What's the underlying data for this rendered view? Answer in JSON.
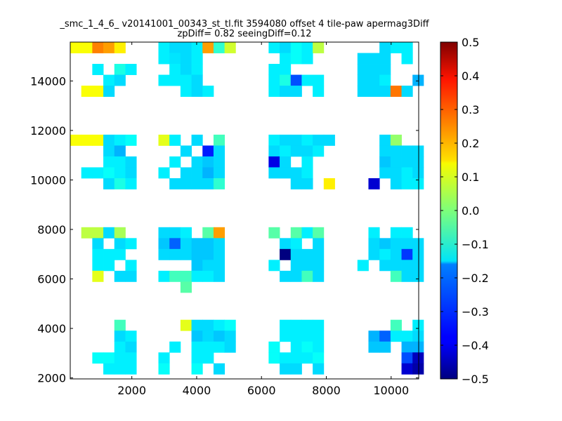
{
  "chart_data": {
    "type": "heatmap",
    "title": "_smc_1_4_6_ v20141001_00343_st_tl.fit 3594080 offset 4 tile-paw apermag3Diff",
    "subtitle": "zpDiff= 0.82 seeingDiff=0.12",
    "xlabel": "",
    "ylabel": "",
    "xlim": [
      100,
      10850
    ],
    "ylim": [
      1960,
      15570
    ],
    "x_ticks": [
      2000,
      4000,
      6000,
      8000,
      10000
    ],
    "y_ticks": [
      2000,
      4000,
      6000,
      8000,
      10000,
      12000,
      14000
    ],
    "x_tick_labels": [
      "2000",
      "4000",
      "6000",
      "8000",
      "10000"
    ],
    "y_tick_labels": [
      "2000",
      "4000",
      "6000",
      "8000",
      "10000",
      "12000",
      "14000"
    ],
    "colorbar": {
      "min": -0.5,
      "max": 0.5,
      "colormap": "jet",
      "ticks": [
        0.5,
        0.4,
        0.3,
        0.2,
        0.1,
        0.0,
        -0.1,
        -0.2,
        -0.3,
        -0.4,
        -0.5
      ],
      "tick_labels": [
        "0.5",
        "0.4",
        "0.3",
        "0.2",
        "0.1",
        "0.0",
        "−0.1",
        "−0.2",
        "−0.3",
        "−0.4",
        "−0.5"
      ]
    },
    "grid": false,
    "cell_size": [
      340,
      440
    ],
    "cells": [
      [
        100,
        15130,
        0.12
      ],
      [
        440,
        15130,
        0.12
      ],
      [
        780,
        15130,
        0.25
      ],
      [
        1120,
        15130,
        0.22
      ],
      [
        1460,
        15130,
        0.14
      ],
      [
        2820,
        15130,
        -0.14
      ],
      [
        3160,
        15130,
        -0.16
      ],
      [
        3500,
        15130,
        -0.16
      ],
      [
        3840,
        15130,
        -0.14
      ],
      [
        4180,
        15130,
        0.22
      ],
      [
        4520,
        15130,
        -0.08
      ],
      [
        4860,
        15130,
        0.08
      ],
      [
        6220,
        15130,
        -0.14
      ],
      [
        6560,
        15130,
        -0.16
      ],
      [
        6900,
        15130,
        -0.12
      ],
      [
        7240,
        15130,
        -0.14
      ],
      [
        7580,
        15130,
        0.06
      ],
      [
        9640,
        15130,
        -0.16
      ],
      [
        9980,
        15130,
        -0.14
      ],
      [
        10320,
        15130,
        -0.14
      ],
      [
        2820,
        14690,
        -0.14
      ],
      [
        3160,
        14690,
        -0.15
      ],
      [
        3500,
        14690,
        -0.16
      ],
      [
        3840,
        14690,
        -0.14
      ],
      [
        6560,
        14690,
        -0.14
      ],
      [
        6900,
        14690,
        -0.12
      ],
      [
        7240,
        14690,
        -0.14
      ],
      [
        8960,
        14690,
        -0.16
      ],
      [
        9300,
        14690,
        -0.16
      ],
      [
        9640,
        14690,
        -0.16
      ],
      [
        10320,
        14690,
        -0.14
      ],
      [
        780,
        14250,
        -0.14
      ],
      [
        1460,
        14250,
        -0.1
      ],
      [
        1800,
        14250,
        -0.14
      ],
      [
        3160,
        14250,
        -0.14
      ],
      [
        3500,
        14250,
        -0.16
      ],
      [
        3840,
        14250,
        -0.14
      ],
      [
        6220,
        14250,
        -0.14
      ],
      [
        6560,
        14250,
        -0.14
      ],
      [
        8960,
        14250,
        -0.16
      ],
      [
        9300,
        14250,
        -0.16
      ],
      [
        9640,
        14250,
        -0.16
      ],
      [
        1120,
        13810,
        -0.14
      ],
      [
        1460,
        13810,
        -0.16
      ],
      [
        2820,
        13810,
        -0.14
      ],
      [
        3160,
        13810,
        -0.14
      ],
      [
        3500,
        13810,
        -0.14
      ],
      [
        3840,
        13810,
        -0.16
      ],
      [
        6220,
        13810,
        -0.14
      ],
      [
        6560,
        13810,
        -0.1
      ],
      [
        6900,
        13810,
        -0.3
      ],
      [
        7240,
        13810,
        -0.14
      ],
      [
        7580,
        13810,
        -0.14
      ],
      [
        8960,
        13810,
        -0.16
      ],
      [
        9300,
        13810,
        -0.16
      ],
      [
        9640,
        13810,
        -0.14
      ],
      [
        10660,
        13810,
        -0.2
      ],
      [
        440,
        13370,
        0.12
      ],
      [
        780,
        13370,
        0.12
      ],
      [
        1120,
        13370,
        -0.16
      ],
      [
        3500,
        13370,
        -0.14
      ],
      [
        3840,
        13370,
        -0.16
      ],
      [
        4180,
        13370,
        -0.14
      ],
      [
        6220,
        13370,
        -0.14
      ],
      [
        6560,
        13370,
        -0.16
      ],
      [
        6900,
        13370,
        -0.16
      ],
      [
        7580,
        13370,
        -0.14
      ],
      [
        8960,
        13370,
        -0.16
      ],
      [
        9300,
        13370,
        -0.16
      ],
      [
        9640,
        13370,
        -0.16
      ],
      [
        9980,
        13370,
        0.26
      ],
      [
        10320,
        13370,
        -0.16
      ],
      [
        100,
        11390,
        0.12
      ],
      [
        440,
        11390,
        0.12
      ],
      [
        780,
        11390,
        0.12
      ],
      [
        1120,
        11390,
        -0.16
      ],
      [
        1460,
        11390,
        -0.14
      ],
      [
        1800,
        11390,
        -0.12
      ],
      [
        2820,
        11390,
        0.1
      ],
      [
        3160,
        11390,
        -0.14
      ],
      [
        3840,
        11390,
        -0.16
      ],
      [
        4520,
        11390,
        -0.06
      ],
      [
        6220,
        11390,
        -0.14
      ],
      [
        6560,
        11390,
        -0.16
      ],
      [
        6900,
        11390,
        -0.16
      ],
      [
        7240,
        11390,
        -0.14
      ],
      [
        7580,
        11390,
        -0.16
      ],
      [
        7920,
        11390,
        -0.16
      ],
      [
        9640,
        11390,
        -0.16
      ],
      [
        9980,
        11390,
        0.02
      ],
      [
        1120,
        10950,
        -0.16
      ],
      [
        1460,
        10950,
        -0.2
      ],
      [
        3500,
        10950,
        -0.16
      ],
      [
        4180,
        10950,
        -0.35
      ],
      [
        4520,
        10950,
        -0.16
      ],
      [
        6220,
        10950,
        -0.16
      ],
      [
        6560,
        10950,
        -0.14
      ],
      [
        6900,
        10950,
        -0.16
      ],
      [
        7240,
        10950,
        -0.16
      ],
      [
        7580,
        10950,
        -0.14
      ],
      [
        9640,
        10950,
        -0.16
      ],
      [
        9980,
        10950,
        -0.16
      ],
      [
        10320,
        10950,
        -0.16
      ],
      [
        10660,
        10950,
        -0.16
      ],
      [
        1120,
        10510,
        -0.14
      ],
      [
        1460,
        10510,
        -0.14
      ],
      [
        1800,
        10510,
        -0.16
      ],
      [
        3160,
        10510,
        -0.14
      ],
      [
        3840,
        10510,
        -0.16
      ],
      [
        4180,
        10510,
        -0.18
      ],
      [
        4520,
        10510,
        -0.16
      ],
      [
        6220,
        10510,
        -0.4
      ],
      [
        6560,
        10510,
        -0.16
      ],
      [
        7240,
        10510,
        -0.14
      ],
      [
        9640,
        10510,
        -0.18
      ],
      [
        9980,
        10510,
        -0.16
      ],
      [
        10320,
        10510,
        -0.16
      ],
      [
        10660,
        10510,
        -0.16
      ],
      [
        440,
        10070,
        -0.14
      ],
      [
        780,
        10070,
        -0.14
      ],
      [
        1120,
        10070,
        -0.12
      ],
      [
        1460,
        10070,
        -0.14
      ],
      [
        1800,
        10070,
        -0.16
      ],
      [
        2820,
        10070,
        -0.14
      ],
      [
        3500,
        10070,
        -0.16
      ],
      [
        3840,
        10070,
        -0.16
      ],
      [
        4180,
        10070,
        -0.2
      ],
      [
        4520,
        10070,
        -0.16
      ],
      [
        6220,
        10070,
        -0.16
      ],
      [
        6560,
        10070,
        -0.16
      ],
      [
        6900,
        10070,
        -0.16
      ],
      [
        7240,
        10070,
        -0.14
      ],
      [
        9640,
        10070,
        -0.16
      ],
      [
        9980,
        10070,
        -0.16
      ],
      [
        10320,
        10070,
        -0.14
      ],
      [
        10660,
        10070,
        -0.16
      ],
      [
        1120,
        9630,
        -0.16
      ],
      [
        1460,
        9630,
        -0.1
      ],
      [
        1800,
        9630,
        -0.14
      ],
      [
        3160,
        9630,
        -0.16
      ],
      [
        3500,
        9630,
        -0.16
      ],
      [
        3840,
        9630,
        -0.16
      ],
      [
        4180,
        9630,
        -0.16
      ],
      [
        4520,
        9630,
        -0.08
      ],
      [
        6900,
        9630,
        -0.16
      ],
      [
        7240,
        9630,
        -0.16
      ],
      [
        7920,
        9630,
        0.14
      ],
      [
        9300,
        9630,
        -0.42
      ],
      [
        9980,
        9630,
        -0.16
      ],
      [
        10320,
        9630,
        -0.14
      ],
      [
        10660,
        9630,
        -0.14
      ],
      [
        440,
        7650,
        0.06
      ],
      [
        780,
        7650,
        0.06
      ],
      [
        1120,
        7650,
        -0.16
      ],
      [
        1460,
        7650,
        0.04
      ],
      [
        2820,
        7650,
        -0.16
      ],
      [
        3160,
        7650,
        -0.16
      ],
      [
        3500,
        7650,
        -0.14
      ],
      [
        4180,
        7650,
        -0.04
      ],
      [
        4520,
        7650,
        0.22
      ],
      [
        6220,
        7650,
        -0.04
      ],
      [
        6900,
        7650,
        -0.04
      ],
      [
        7240,
        7650,
        -0.14
      ],
      [
        7580,
        7650,
        -0.04
      ],
      [
        9300,
        7650,
        -0.14
      ],
      [
        9980,
        7650,
        -0.14
      ],
      [
        10320,
        7650,
        -0.14
      ],
      [
        780,
        7210,
        -0.16
      ],
      [
        1460,
        7210,
        -0.16
      ],
      [
        1800,
        7210,
        -0.14
      ],
      [
        2820,
        7210,
        -0.18
      ],
      [
        3160,
        7210,
        -0.28
      ],
      [
        3500,
        7210,
        -0.16
      ],
      [
        3840,
        7210,
        -0.18
      ],
      [
        4180,
        7210,
        -0.18
      ],
      [
        4520,
        7210,
        -0.16
      ],
      [
        6560,
        7210,
        -0.16
      ],
      [
        6900,
        7210,
        -0.14
      ],
      [
        7580,
        7210,
        -0.16
      ],
      [
        9300,
        7210,
        -0.16
      ],
      [
        9640,
        7210,
        -0.18
      ],
      [
        9980,
        7210,
        -0.16
      ],
      [
        10320,
        7210,
        -0.16
      ],
      [
        10660,
        7210,
        -0.16
      ],
      [
        780,
        6770,
        -0.14
      ],
      [
        1120,
        6770,
        -0.14
      ],
      [
        1460,
        6770,
        -0.14
      ],
      [
        2820,
        6770,
        -0.16
      ],
      [
        3160,
        6770,
        -0.16
      ],
      [
        3500,
        6770,
        -0.16
      ],
      [
        3840,
        6770,
        -0.18
      ],
      [
        4180,
        6770,
        -0.18
      ],
      [
        4520,
        6770,
        -0.16
      ],
      [
        6560,
        6770,
        -0.5
      ],
      [
        6900,
        6770,
        -0.16
      ],
      [
        7240,
        6770,
        -0.16
      ],
      [
        7580,
        6770,
        -0.16
      ],
      [
        9300,
        6770,
        -0.16
      ],
      [
        9640,
        6770,
        -0.14
      ],
      [
        9980,
        6770,
        -0.16
      ],
      [
        10320,
        6770,
        -0.32
      ],
      [
        10660,
        6770,
        -0.16
      ],
      [
        780,
        6330,
        -0.14
      ],
      [
        1120,
        6330,
        -0.14
      ],
      [
        1800,
        6330,
        -0.14
      ],
      [
        3840,
        6330,
        -0.18
      ],
      [
        4180,
        6330,
        -0.16
      ],
      [
        4520,
        6330,
        -0.16
      ],
      [
        6220,
        6330,
        -0.14
      ],
      [
        6900,
        6330,
        -0.16
      ],
      [
        7240,
        6330,
        -0.16
      ],
      [
        7580,
        6330,
        -0.16
      ],
      [
        8960,
        6330,
        -0.14
      ],
      [
        9640,
        6330,
        -0.16
      ],
      [
        9980,
        6330,
        -0.16
      ],
      [
        10320,
        6330,
        -0.16
      ],
      [
        10660,
        6330,
        -0.16
      ],
      [
        780,
        5890,
        0.1
      ],
      [
        1460,
        5890,
        -0.16
      ],
      [
        1800,
        5890,
        -0.16
      ],
      [
        2820,
        5890,
        -0.14
      ],
      [
        3160,
        5890,
        -0.06
      ],
      [
        3500,
        5890,
        -0.06
      ],
      [
        3840,
        5890,
        -0.14
      ],
      [
        4180,
        5890,
        -0.14
      ],
      [
        4520,
        5890,
        -0.16
      ],
      [
        6560,
        5890,
        -0.16
      ],
      [
        6900,
        5890,
        -0.16
      ],
      [
        7240,
        5890,
        -0.06
      ],
      [
        7580,
        5890,
        -0.16
      ],
      [
        9980,
        5890,
        -0.06
      ],
      [
        10320,
        5890,
        -0.16
      ],
      [
        10660,
        5890,
        -0.16
      ],
      [
        3500,
        5450,
        -0.04
      ],
      [
        1460,
        3910,
        -0.06
      ],
      [
        3500,
        3910,
        0.1
      ],
      [
        3840,
        3910,
        -0.16
      ],
      [
        4180,
        3910,
        -0.16
      ],
      [
        4520,
        3910,
        -0.14
      ],
      [
        4860,
        3910,
        -0.12
      ],
      [
        6560,
        3910,
        -0.14
      ],
      [
        6900,
        3910,
        -0.14
      ],
      [
        7240,
        3910,
        -0.14
      ],
      [
        7580,
        3910,
        -0.14
      ],
      [
        9980,
        3910,
        -0.06
      ],
      [
        10660,
        3910,
        -0.14
      ],
      [
        1460,
        3470,
        -0.16
      ],
      [
        1800,
        3470,
        -0.14
      ],
      [
        3840,
        3470,
        -0.18
      ],
      [
        4180,
        3470,
        -0.16
      ],
      [
        4520,
        3470,
        -0.18
      ],
      [
        4860,
        3470,
        -0.16
      ],
      [
        6560,
        3470,
        -0.14
      ],
      [
        6900,
        3470,
        -0.14
      ],
      [
        7240,
        3470,
        -0.14
      ],
      [
        7580,
        3470,
        -0.14
      ],
      [
        9300,
        3470,
        -0.2
      ],
      [
        9640,
        3470,
        -0.28
      ],
      [
        9980,
        3470,
        -0.14
      ],
      [
        10320,
        3470,
        -0.14
      ],
      [
        10660,
        3470,
        -0.16
      ],
      [
        1460,
        3030,
        -0.14
      ],
      [
        1800,
        3030,
        -0.16
      ],
      [
        3160,
        3030,
        -0.14
      ],
      [
        3840,
        3030,
        -0.14
      ],
      [
        4180,
        3030,
        -0.14
      ],
      [
        4520,
        3030,
        -0.14
      ],
      [
        4860,
        3030,
        -0.16
      ],
      [
        6220,
        3030,
        -0.12
      ],
      [
        6900,
        3030,
        -0.14
      ],
      [
        7240,
        3030,
        -0.12
      ],
      [
        7580,
        3030,
        -0.14
      ],
      [
        9300,
        3030,
        -0.18
      ],
      [
        9640,
        3030,
        -0.18
      ],
      [
        10320,
        3030,
        -0.2
      ],
      [
        10660,
        3030,
        -0.2
      ],
      [
        780,
        2590,
        -0.12
      ],
      [
        1120,
        2590,
        -0.12
      ],
      [
        1460,
        2590,
        -0.14
      ],
      [
        1800,
        2590,
        -0.14
      ],
      [
        2820,
        2590,
        -0.14
      ],
      [
        3840,
        2590,
        -0.14
      ],
      [
        4180,
        2590,
        -0.14
      ],
      [
        6220,
        2590,
        -0.12
      ],
      [
        6560,
        2590,
        -0.14
      ],
      [
        6900,
        2590,
        -0.14
      ],
      [
        7240,
        2590,
        -0.14
      ],
      [
        7580,
        2590,
        -0.12
      ],
      [
        10320,
        2590,
        -0.3
      ],
      [
        10660,
        2590,
        -0.44
      ],
      [
        1120,
        2150,
        -0.14
      ],
      [
        1460,
        2150,
        -0.14
      ],
      [
        1800,
        2150,
        -0.14
      ],
      [
        2820,
        2150,
        -0.12
      ],
      [
        3840,
        2150,
        -0.12
      ],
      [
        4520,
        2150,
        -0.16
      ],
      [
        6560,
        2150,
        -0.16
      ],
      [
        6900,
        2150,
        -0.16
      ],
      [
        7580,
        2150,
        -0.16
      ],
      [
        10320,
        2150,
        -0.42
      ],
      [
        10660,
        2150,
        -0.46
      ]
    ]
  }
}
